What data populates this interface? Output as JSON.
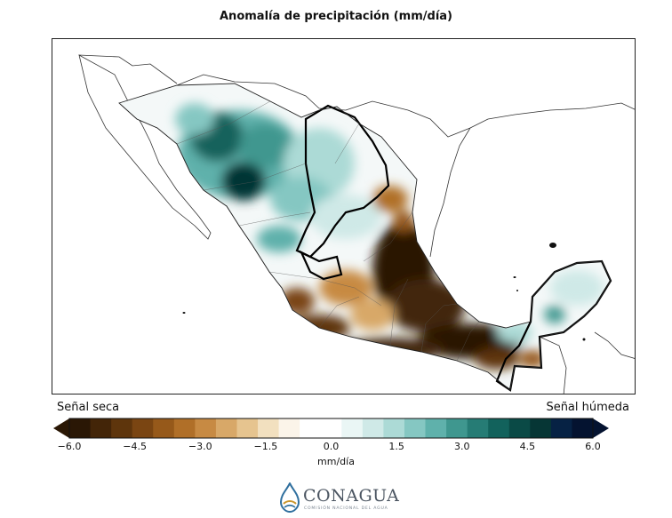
{
  "title": "Anomalía de precipitación (mm/día)",
  "legend": {
    "left_label": "Señal seca",
    "right_label": "Señal húmeda",
    "units": "mm/día",
    "ticks": [
      "−6.0",
      "−4.5",
      "−3.0",
      "−1.5",
      "0.0",
      "1.5",
      "3.0",
      "4.5",
      "6.0"
    ],
    "range": [
      -6.0,
      6.0
    ],
    "colors": [
      "#2a1705",
      "#432508",
      "#5e350c",
      "#7a4512",
      "#96591a",
      "#b06f28",
      "#c78a43",
      "#d8a868",
      "#e6c48f",
      "#f2e0bf",
      "#fbf4e9",
      "#ffffff",
      "#ffffff",
      "#eaf6f5",
      "#cfe9e7",
      "#acdad6",
      "#85c7c2",
      "#5fb1ab",
      "#3f978f",
      "#267c75",
      "#12625c",
      "#0a4a46",
      "#063635",
      "#062244",
      "#041330"
    ]
  },
  "logo": {
    "name": "CONAGUA",
    "subtitle": "COMISIÓN NACIONAL DEL AGUA"
  }
}
